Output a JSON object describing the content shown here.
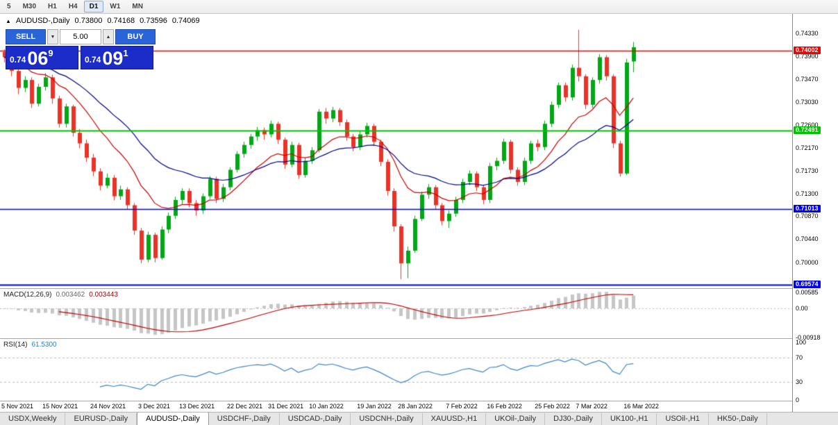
{
  "toolbar": {
    "timeframes": [
      "5",
      "M30",
      "H1",
      "H4",
      "D1",
      "W1",
      "MN"
    ],
    "active_index": 4
  },
  "chart_header": {
    "symbol": "AUDUSD-,Daily",
    "open": "0.73800",
    "high": "0.74168",
    "low": "0.73596",
    "close": "0.74069"
  },
  "trade_panel": {
    "sell_label": "SELL",
    "buy_label": "BUY",
    "lot_value": "5.00",
    "down_arrow": "▼",
    "up_arrow": "▲",
    "bid": {
      "prefix": "0.74",
      "big": "06",
      "sup": "9"
    },
    "ask": {
      "prefix": "0.74",
      "big": "09",
      "sup": "1"
    }
  },
  "tabs": {
    "items": [
      "USDX,Weekly",
      "EURUSD-,Daily",
      "AUDUSD-,Daily",
      "USDCHF-,Daily",
      "USDCAD-,Daily",
      "USDCNH-,Daily",
      "XAUUSD-,H1",
      "UKOil-,Daily",
      "DJ30-,Daily",
      "UK100-,H1",
      "USOil-,H1",
      "HK50-,Daily"
    ],
    "active_index": 2
  },
  "colors": {
    "chart_bg": "#ffffff",
    "up": "#00a814",
    "down": "#ea3326",
    "macd_bar": "#c6c6c6",
    "macd_signal": "#c00000",
    "rsi_line": "#3e86c8",
    "grid_dash": "#bcbcbc"
  },
  "chart_data": {
    "type": "candlestick",
    "symbol": "AUDUSD",
    "timeframe": "Daily",
    "y_range": [
      0.6951,
      0.747
    ],
    "y_ticks": [
      "0.74330",
      "0.73900",
      "0.73470",
      "0.73030",
      "0.72600",
      "0.72170",
      "0.71730",
      "0.71300",
      "0.70870",
      "0.70440",
      "0.70000"
    ],
    "hlines": [
      {
        "value": 0.74002,
        "label": "0.74002",
        "color": "#f00000",
        "width": 1.3
      },
      {
        "value": 0.72491,
        "label": "0.72491",
        "color": "#00c300",
        "width": 2
      },
      {
        "value": 0.71013,
        "label": "0.71013",
        "color": "#0000f0",
        "width": 1.5
      },
      {
        "value": 0.69574,
        "label": "0.69574",
        "color": "#0000f0",
        "width": 2
      }
    ],
    "overlays": [
      {
        "type": "ema",
        "period": 12,
        "color": "#cc0000"
      },
      {
        "type": "ema",
        "period": 26,
        "color": "#000090"
      }
    ],
    "x_tick_labels": [
      "5 Nov 2021",
      "15 Nov 2021",
      "24 Nov 2021",
      "3 Dec 2021",
      "13 Dec 2021",
      "22 Dec 2021",
      "31 Dec 2021",
      "10 Jan 2022",
      "19 Jan 2022",
      "28 Jan 2022",
      "7 Feb 2022",
      "16 Feb 2022",
      "25 Feb 2022",
      "7 Mar 2022",
      "16 Mar 2022"
    ],
    "x_tick_indices": [
      0,
      6,
      13,
      20,
      26,
      33,
      39,
      45,
      52,
      58,
      65,
      71,
      78,
      84,
      91
    ],
    "candles": [
      [
        0.7398,
        0.7403,
        0.7378,
        0.7388
      ],
      [
        0.7388,
        0.7392,
        0.7352,
        0.7362
      ],
      [
        0.7362,
        0.737,
        0.7318,
        0.733
      ],
      [
        0.733,
        0.7352,
        0.7322,
        0.7345
      ],
      [
        0.7345,
        0.735,
        0.7292,
        0.73
      ],
      [
        0.73,
        0.7338,
        0.7295,
        0.7332
      ],
      [
        0.7332,
        0.7358,
        0.7325,
        0.735
      ],
      [
        0.735,
        0.7355,
        0.73,
        0.731
      ],
      [
        0.731,
        0.7315,
        0.7255,
        0.7262
      ],
      [
        0.7262,
        0.73,
        0.7255,
        0.7295
      ],
      [
        0.7295,
        0.7298,
        0.7238,
        0.7245
      ],
      [
        0.7245,
        0.7252,
        0.7216,
        0.7225
      ],
      [
        0.7225,
        0.7232,
        0.719,
        0.7198
      ],
      [
        0.7198,
        0.7205,
        0.7163,
        0.7172
      ],
      [
        0.7172,
        0.7178,
        0.7136,
        0.7145
      ],
      [
        0.7145,
        0.7168,
        0.714,
        0.716
      ],
      [
        0.716,
        0.7165,
        0.7117,
        0.7125
      ],
      [
        0.7125,
        0.7145,
        0.7118,
        0.7138
      ],
      [
        0.7138,
        0.7142,
        0.71,
        0.7108
      ],
      [
        0.7108,
        0.7112,
        0.7052,
        0.706
      ],
      [
        0.706,
        0.7065,
        0.6998,
        0.7005
      ],
      [
        0.7005,
        0.7058,
        0.7,
        0.7052
      ],
      [
        0.7052,
        0.7056,
        0.7,
        0.7008
      ],
      [
        0.7008,
        0.7068,
        0.7005,
        0.7062
      ],
      [
        0.7062,
        0.7094,
        0.7055,
        0.7088
      ],
      [
        0.7088,
        0.7124,
        0.7082,
        0.7118
      ],
      [
        0.7118,
        0.714,
        0.711,
        0.7135
      ],
      [
        0.7135,
        0.714,
        0.7104,
        0.7112
      ],
      [
        0.7112,
        0.7118,
        0.7088,
        0.7098
      ],
      [
        0.7098,
        0.713,
        0.7092,
        0.7125
      ],
      [
        0.7125,
        0.7163,
        0.712,
        0.7158
      ],
      [
        0.7158,
        0.7162,
        0.7112,
        0.712
      ],
      [
        0.712,
        0.7148,
        0.7114,
        0.7142
      ],
      [
        0.7142,
        0.718,
        0.7136,
        0.7175
      ],
      [
        0.7175,
        0.721,
        0.717,
        0.7205
      ],
      [
        0.7205,
        0.7228,
        0.7198,
        0.7222
      ],
      [
        0.7222,
        0.7243,
        0.7215,
        0.7238
      ],
      [
        0.7238,
        0.7256,
        0.723,
        0.725
      ],
      [
        0.725,
        0.7255,
        0.7232,
        0.7242
      ],
      [
        0.7242,
        0.7268,
        0.7236,
        0.7262
      ],
      [
        0.7262,
        0.7266,
        0.7224,
        0.7232
      ],
      [
        0.7232,
        0.7236,
        0.7177,
        0.7185
      ],
      [
        0.7185,
        0.7228,
        0.718,
        0.7222
      ],
      [
        0.7222,
        0.7226,
        0.7158,
        0.7165
      ],
      [
        0.7165,
        0.7198,
        0.716,
        0.7192
      ],
      [
        0.7192,
        0.7218,
        0.7186,
        0.7212
      ],
      [
        0.7212,
        0.729,
        0.7208,
        0.7285
      ],
      [
        0.7285,
        0.7292,
        0.7262,
        0.7272
      ],
      [
        0.7272,
        0.7294,
        0.7265,
        0.7288
      ],
      [
        0.7288,
        0.7292,
        0.7258,
        0.7265
      ],
      [
        0.7265,
        0.727,
        0.723,
        0.7238
      ],
      [
        0.7238,
        0.7243,
        0.721,
        0.7218
      ],
      [
        0.7218,
        0.7248,
        0.7212,
        0.7242
      ],
      [
        0.7242,
        0.7264,
        0.7236,
        0.7258
      ],
      [
        0.7258,
        0.7262,
        0.722,
        0.7228
      ],
      [
        0.7228,
        0.7232,
        0.7182,
        0.719
      ],
      [
        0.719,
        0.7195,
        0.7126,
        0.7135
      ],
      [
        0.7135,
        0.714,
        0.7058,
        0.7068
      ],
      [
        0.7068,
        0.7072,
        0.6968,
        0.6998
      ],
      [
        0.6998,
        0.703,
        0.697,
        0.7022
      ],
      [
        0.7022,
        0.7088,
        0.7018,
        0.7082
      ],
      [
        0.7082,
        0.7134,
        0.7078,
        0.7128
      ],
      [
        0.7128,
        0.7148,
        0.712,
        0.7142
      ],
      [
        0.7142,
        0.7146,
        0.71,
        0.7108
      ],
      [
        0.7108,
        0.7112,
        0.707,
        0.7078
      ],
      [
        0.7078,
        0.7098,
        0.7065,
        0.7092
      ],
      [
        0.7092,
        0.7124,
        0.7086,
        0.7118
      ],
      [
        0.7118,
        0.7158,
        0.7112,
        0.7152
      ],
      [
        0.7152,
        0.7174,
        0.7146,
        0.7168
      ],
      [
        0.7168,
        0.7172,
        0.7135,
        0.7142
      ],
      [
        0.7142,
        0.7146,
        0.711,
        0.7118
      ],
      [
        0.7118,
        0.7188,
        0.7112,
        0.7182
      ],
      [
        0.7182,
        0.7198,
        0.7174,
        0.7192
      ],
      [
        0.7192,
        0.7234,
        0.7186,
        0.7228
      ],
      [
        0.7228,
        0.7232,
        0.7168,
        0.7175
      ],
      [
        0.7175,
        0.718,
        0.7145,
        0.7152
      ],
      [
        0.7152,
        0.7198,
        0.7146,
        0.7192
      ],
      [
        0.7192,
        0.723,
        0.7186,
        0.7225
      ],
      [
        0.7225,
        0.7232,
        0.721,
        0.7218
      ],
      [
        0.7218,
        0.7268,
        0.7212,
        0.7262
      ],
      [
        0.7262,
        0.7304,
        0.7256,
        0.7298
      ],
      [
        0.7298,
        0.734,
        0.7292,
        0.7335
      ],
      [
        0.7335,
        0.734,
        0.7304,
        0.7312
      ],
      [
        0.7312,
        0.7374,
        0.7306,
        0.7368
      ],
      [
        0.7368,
        0.744,
        0.7342,
        0.7352
      ],
      [
        0.7352,
        0.7356,
        0.729,
        0.7298
      ],
      [
        0.7298,
        0.735,
        0.7292,
        0.7345
      ],
      [
        0.7345,
        0.7394,
        0.7338,
        0.7388
      ],
      [
        0.7388,
        0.7392,
        0.7344,
        0.7352
      ],
      [
        0.7352,
        0.7356,
        0.7216,
        0.7225
      ],
      [
        0.7225,
        0.723,
        0.7162,
        0.7168
      ],
      [
        0.7168,
        0.7385,
        0.7165,
        0.7378
      ],
      [
        0.738,
        0.74168,
        0.73596,
        0.74069
      ]
    ],
    "macd": {
      "label": "MACD(12,26,9)",
      "fast": 12,
      "slow": 26,
      "signal": 9,
      "value": "0.003462",
      "signal_value": "0.003443",
      "range": [
        -0.0095,
        0.0062
      ],
      "axis": [
        {
          "v": 0.00585,
          "label": "0.00585"
        },
        {
          "v": 0,
          "label": "0.00"
        },
        {
          "v": -0.00918,
          "label": "-0.00918"
        }
      ]
    },
    "rsi": {
      "label": "RSI(14)",
      "period": 14,
      "value": "61.5300",
      "range": [
        0,
        100
      ],
      "levels": [
        70,
        30
      ],
      "axis": [
        {
          "v": 100,
          "label": "100"
        },
        {
          "v": 70,
          "label": "70"
        },
        {
          "v": 30,
          "label": "30"
        },
        {
          "v": 0,
          "label": "0"
        }
      ]
    }
  }
}
